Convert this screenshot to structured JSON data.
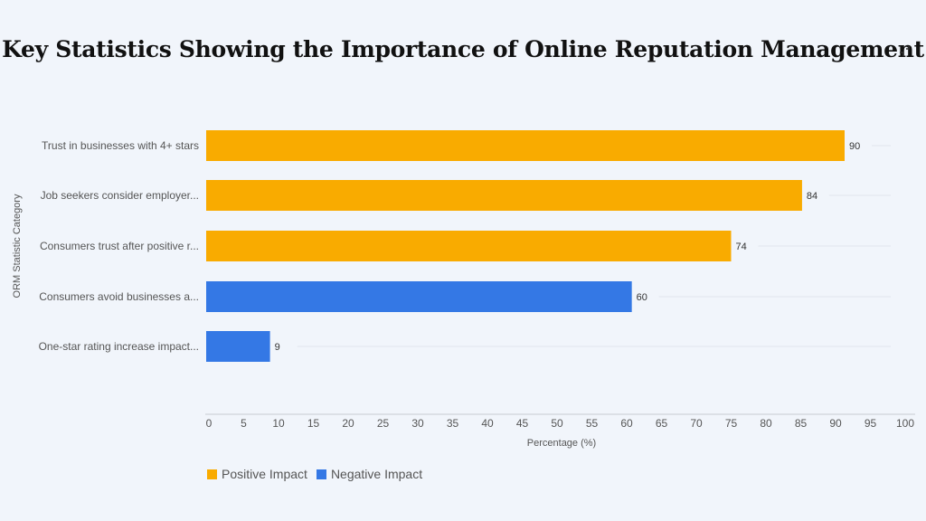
{
  "chart_data": {
    "type": "bar",
    "orientation": "horizontal",
    "title": "Key Statistics Showing the Importance of Online Reputation Management",
    "xlabel": "Percentage (%)",
    "ylabel": "ORM Statistic Category",
    "xlim": [
      0,
      100
    ],
    "xticks": [
      0,
      5,
      10,
      15,
      20,
      25,
      30,
      35,
      40,
      45,
      50,
      55,
      60,
      65,
      70,
      75,
      80,
      85,
      90,
      95,
      100
    ],
    "categories": [
      "Trust in businesses with 4+ stars",
      "Job seekers consider employer...",
      "Consumers trust after positive r...",
      "Consumers avoid businesses a...",
      "One-star rating increase impact..."
    ],
    "values": [
      90,
      84,
      74,
      60,
      9
    ],
    "groups": [
      "Positive Impact",
      "Positive Impact",
      "Positive Impact",
      "Negative Impact",
      "Negative Impact"
    ],
    "legend": [
      {
        "name": "Positive Impact",
        "color": "#f9ab00"
      },
      {
        "name": "Negative Impact",
        "color": "#3478e5"
      }
    ],
    "legend_position": "bottom-left"
  },
  "icons": {
    "corner": "collapse-icon"
  }
}
